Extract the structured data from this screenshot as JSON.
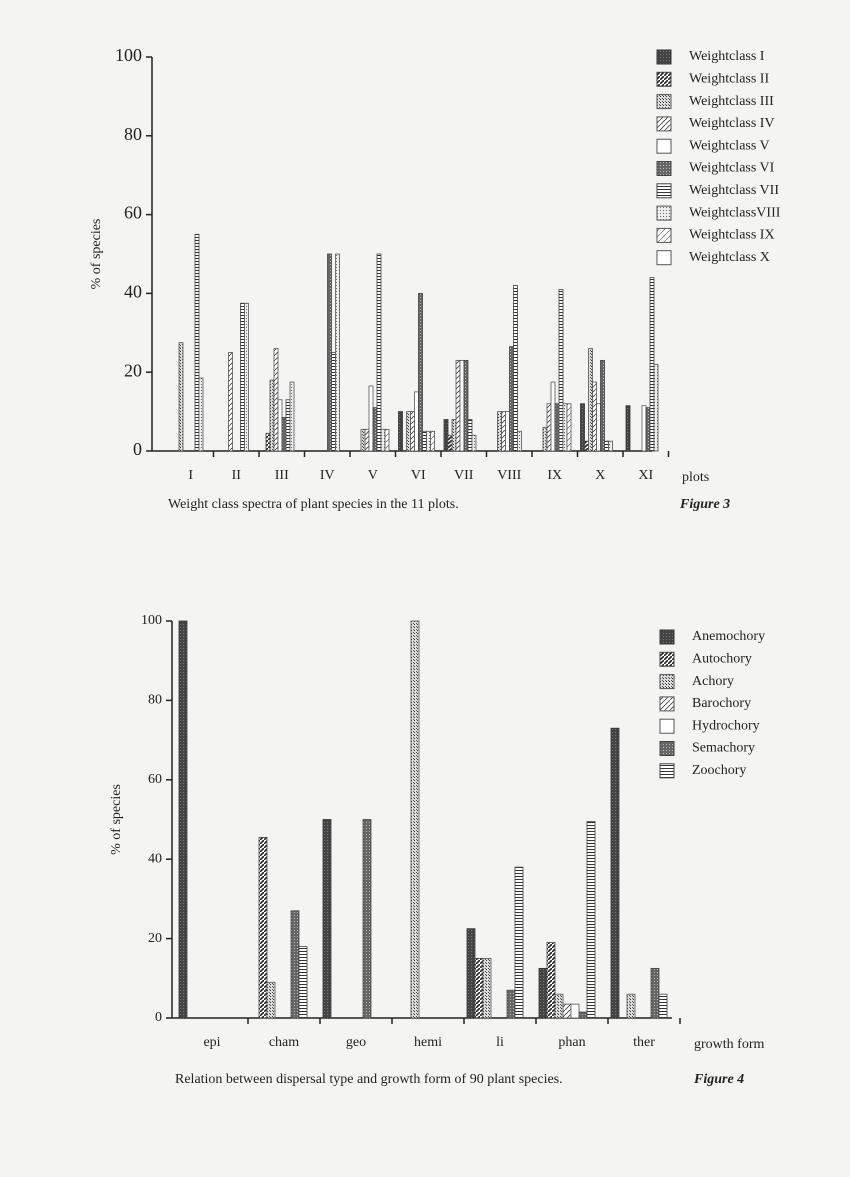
{
  "chart_data": [
    {
      "type": "bar",
      "y_label": "% of species",
      "x_label": "plots",
      "caption": "Weight class spectra of plant species in the 11 plots.",
      "figure_label": "Figure 3",
      "categories": [
        "I",
        "II",
        "III",
        "IV",
        "V",
        "VI",
        "VII",
        "VIII",
        "IX",
        "X",
        "XI"
      ],
      "ylim": [
        0,
        100
      ],
      "yticks": [
        0,
        20,
        40,
        60,
        80,
        100
      ],
      "series": [
        {
          "name": "Weightclass I",
          "color": "#333333",
          "values": [
            0,
            0,
            0,
            0,
            0,
            10,
            8,
            0,
            0,
            12,
            11.5
          ]
        },
        {
          "name": "Weightclass II",
          "color": "#444444",
          "values": [
            0,
            0,
            4.5,
            0,
            0,
            0,
            4,
            0,
            0,
            2.5,
            0
          ]
        },
        {
          "name": "Weightclass III",
          "color": "#555555",
          "values": [
            27.5,
            0,
            18,
            0,
            5.5,
            10,
            8,
            10,
            6,
            26,
            0
          ]
        },
        {
          "name": "Weightclass IV",
          "color": "#555555",
          "values": [
            0,
            25,
            26,
            0,
            5.5,
            10,
            23,
            10,
            12,
            17.5,
            0
          ]
        },
        {
          "name": "Weightclass V",
          "color": "#555555",
          "values": [
            0,
            0,
            13,
            0,
            16.5,
            15,
            23,
            10,
            17.5,
            12,
            11.5
          ]
        },
        {
          "name": "Weightclass VI",
          "color": "#444444",
          "values": [
            0,
            0,
            8.5,
            50,
            11,
            40,
            23,
            26.5,
            12,
            23,
            11
          ]
        },
        {
          "name": "Weightclass VII",
          "color": "#444444",
          "values": [
            55,
            37.5,
            13,
            25,
            50,
            5,
            8,
            42,
            41,
            2.5,
            44
          ]
        },
        {
          "name": "WeightclassVIII",
          "color": "#555555",
          "values": [
            18.5,
            37.5,
            17.5,
            50,
            5.5,
            5,
            4,
            5,
            12,
            2.5,
            22
          ]
        },
        {
          "name": "Weightclass IX",
          "color": "#555555",
          "values": [
            0,
            0,
            0,
            0,
            5.5,
            5,
            0,
            0,
            12,
            0,
            0
          ]
        },
        {
          "name": "Weightclass X",
          "color": "#555555",
          "values": [
            0,
            0,
            0,
            0,
            0,
            0,
            0,
            0,
            0,
            0,
            0
          ]
        }
      ]
    },
    {
      "type": "bar",
      "y_label": "% of species",
      "x_label": "growth form",
      "caption": "Relation between dispersal type and growth form of 90 plant species.",
      "figure_label": "Figure 4",
      "categories": [
        "epi",
        "cham",
        "geo",
        "hemi",
        "li",
        "phan",
        "ther"
      ],
      "ylim": [
        0,
        100
      ],
      "yticks": [
        0,
        20,
        40,
        60,
        80,
        100
      ],
      "series": [
        {
          "name": "Anemochory",
          "color": "#333333",
          "values": [
            100,
            0,
            50,
            0,
            22.5,
            12.5,
            73
          ]
        },
        {
          "name": "Autochory",
          "color": "#444444",
          "values": [
            0,
            45.5,
            0,
            0,
            15,
            19,
            0
          ]
        },
        {
          "name": "Achory",
          "color": "#555555",
          "values": [
            0,
            9,
            0,
            100,
            15,
            6,
            6
          ]
        },
        {
          "name": "Barochory",
          "color": "#555555",
          "values": [
            0,
            0,
            0,
            0,
            0,
            3.5,
            0
          ]
        },
        {
          "name": "Hydrochory",
          "color": "#555555",
          "values": [
            0,
            0,
            0,
            0,
            0,
            3.5,
            0
          ]
        },
        {
          "name": "Semachory",
          "color": "#444444",
          "values": [
            0,
            27,
            50,
            0,
            7,
            1.5,
            12.5
          ]
        },
        {
          "name": "Zoochory",
          "color": "#444444",
          "values": [
            0,
            18,
            0,
            0,
            38,
            49.5,
            6
          ]
        }
      ]
    }
  ]
}
